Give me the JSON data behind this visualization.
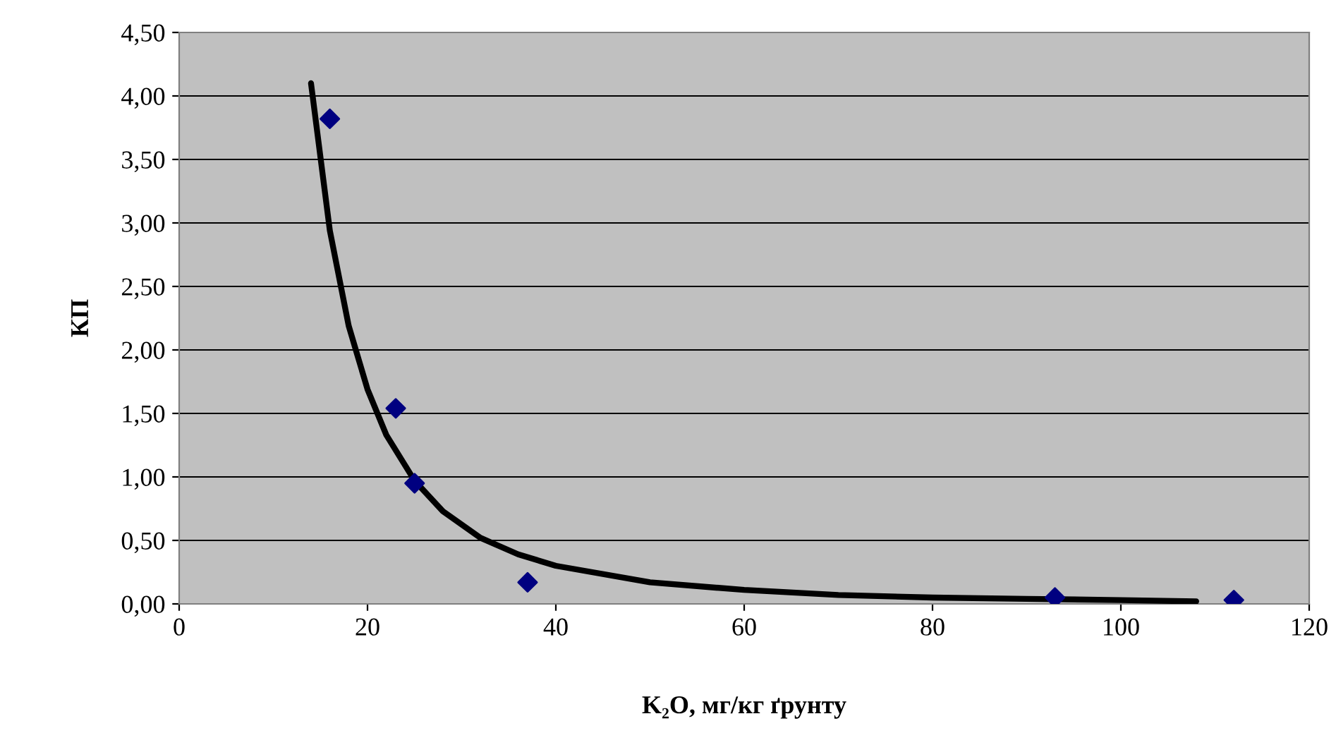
{
  "chart_data": {
    "type": "scatter",
    "xlabel": "K₂O, мг/кг ґрунту",
    "ylabel": "КП",
    "xlim": [
      0,
      120
    ],
    "xticks": [
      0,
      20,
      40,
      60,
      80,
      100,
      120
    ],
    "ylim": [
      0,
      4.5
    ],
    "yticks": [
      {
        "value": 0,
        "label": "0,00"
      },
      {
        "value": 0.5,
        "label": "0,50"
      },
      {
        "value": 1,
        "label": "1,00"
      },
      {
        "value": 1.5,
        "label": "1,50"
      },
      {
        "value": 2,
        "label": "2,00"
      },
      {
        "value": 2.5,
        "label": "2,50"
      },
      {
        "value": 3,
        "label": "3,00"
      },
      {
        "value": 3.5,
        "label": "3,50"
      },
      {
        "value": 4,
        "label": "4,00"
      },
      {
        "value": 4.5,
        "label": "4,50"
      }
    ],
    "grid": "y",
    "legend": false,
    "marker": "diamond",
    "series": [
      {
        "color": "#000080",
        "x": [
          16,
          23,
          25,
          37,
          93,
          112
        ],
        "values": [
          3.82,
          1.54,
          0.95,
          0.17,
          0.05,
          0.03
        ]
      },
      {
        "type": "line",
        "color": "#000000",
        "marker": "none",
        "line_style": "solid",
        "x": [
          14,
          16,
          18,
          20,
          22,
          25,
          28,
          32,
          36,
          40,
          50,
          60,
          70,
          80,
          90,
          100,
          108
        ],
        "values": [
          4.1,
          2.94,
          2.19,
          1.69,
          1.33,
          0.97,
          0.73,
          0.52,
          0.39,
          0.3,
          0.17,
          0.11,
          0.07,
          0.05,
          0.04,
          0.03,
          0.02
        ]
      }
    ]
  }
}
